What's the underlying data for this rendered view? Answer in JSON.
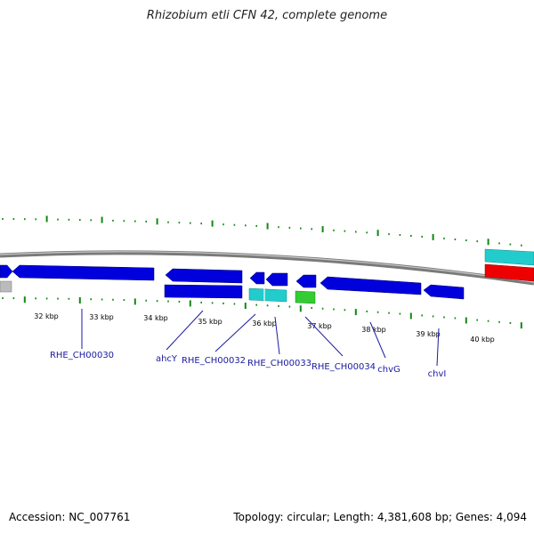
{
  "title": "Rhizobium etli CFN 42, complete genome",
  "footer": {
    "accession": "Accession: NC_007761",
    "stats": "Topology: circular; Length: 4,381,608 bp; Genes: 4,094"
  },
  "colors": {
    "cds_blue": "#0000dd",
    "cyan_feature": "#22cccc",
    "green_feature": "#33cc33",
    "red_feature": "#ee0000",
    "grey_feature": "#bbbbbb",
    "tick_green": "#118811",
    "backbone": "#888888",
    "label_blue": "#1a1aa0"
  },
  "ruler": {
    "ticks": [
      "32 kbp",
      "33 kbp",
      "34 kbp",
      "35 kbp",
      "36 kbp",
      "37 kbp",
      "38 kbp",
      "39 kbp",
      "40 kbp"
    ]
  },
  "genes": [
    {
      "name": "RHE_CH00030"
    },
    {
      "name": "ahcY"
    },
    {
      "name": "RHE_CH00032"
    },
    {
      "name": "RHE_CH00033"
    },
    {
      "name": "RHE_CH00034"
    },
    {
      "name": "chvG"
    },
    {
      "name": "chvI"
    }
  ]
}
